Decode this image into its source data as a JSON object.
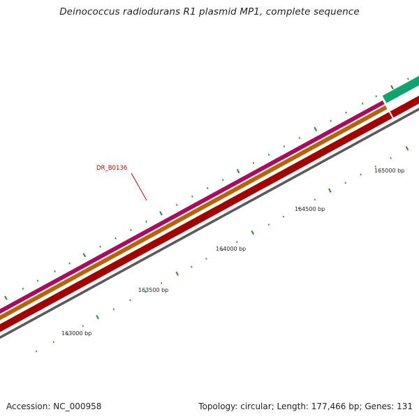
{
  "title": "Deinococcus radiodurans R1 plasmid MP1, complete sequence",
  "footer": {
    "accession": "Accession: NC_000958",
    "summary": "Topology: circular; Length: 177,466 bp; Genes: 131"
  },
  "scale_labels": [
    "163000 bp",
    "163500 bp",
    "164000 bp",
    "164500 bp",
    "165000 bp"
  ],
  "gene_callout": "DR_B0136",
  "colors": {
    "magenta_track": "#e8157f",
    "orange_track": "#f28c00",
    "red_track": "#ee0000",
    "green_feature": "#1ae89a",
    "backbone": "#8c8c8c",
    "ticks": "#2a8a2a",
    "callout": "#cc0000"
  }
}
